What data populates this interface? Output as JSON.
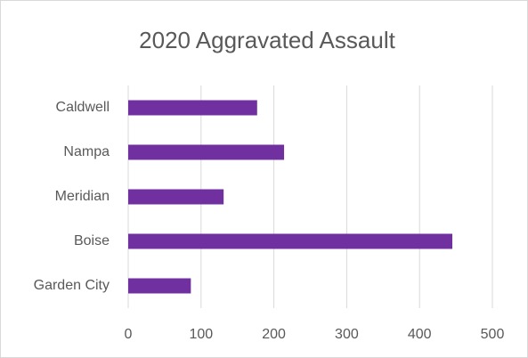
{
  "chart_data": {
    "type": "bar",
    "orientation": "horizontal",
    "title": "2020 Aggravated Assault",
    "categories": [
      "Caldwell",
      "Nampa",
      "Meridian",
      "Boise",
      "Garden City"
    ],
    "values": [
      177,
      214,
      131,
      445,
      86
    ],
    "color": "#7030a0",
    "xlim": [
      0,
      500
    ],
    "xticks": [
      0,
      100,
      200,
      300,
      400,
      500
    ],
    "grid": true
  }
}
